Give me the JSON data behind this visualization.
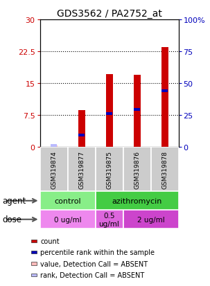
{
  "title": "GDS3562 / PA2752_at",
  "samples": [
    "GSM319874",
    "GSM319877",
    "GSM319875",
    "GSM319876",
    "GSM319878"
  ],
  "red_bar_heights": [
    0.3,
    8.7,
    17.2,
    17.0,
    23.5
  ],
  "blue_marker_values": [
    0.3,
    2.8,
    7.8,
    8.8,
    13.2
  ],
  "absent_samples": [
    0
  ],
  "red_bar_color": "#cc0000",
  "blue_marker_color": "#0000bb",
  "absent_red_color": "#ffbbbb",
  "absent_blue_color": "#bbbbff",
  "ylim_left": [
    0,
    30
  ],
  "ylim_right": [
    0,
    100
  ],
  "left_yticks": [
    0,
    7.5,
    15,
    22.5,
    30
  ],
  "right_yticks": [
    0,
    25,
    50,
    75,
    100
  ],
  "left_tick_labels": [
    "0",
    "7.5",
    "15",
    "22.5",
    "30"
  ],
  "right_tick_labels": [
    "0",
    "25",
    "50",
    "75",
    "100%"
  ],
  "left_tick_color": "#cc0000",
  "right_tick_color": "#0000bb",
  "agent_items": [
    {
      "label": "control",
      "span": [
        0,
        2
      ],
      "color": "#88ee88"
    },
    {
      "label": "azithromycin",
      "span": [
        2,
        5
      ],
      "color": "#44cc44"
    }
  ],
  "dose_items": [
    {
      "label": "0 ug/ml",
      "span": [
        0,
        2
      ],
      "color": "#ee88ee"
    },
    {
      "label": "0.5\nug/ml",
      "span": [
        2,
        3
      ],
      "color": "#dd66dd"
    },
    {
      "label": "2 ug/ml",
      "span": [
        3,
        5
      ],
      "color": "#cc44cc"
    }
  ],
  "bar_width": 0.25,
  "sample_bg_color": "#cccccc",
  "legend_items": [
    {
      "label": "count",
      "color": "#cc0000"
    },
    {
      "label": "percentile rank within the sample",
      "color": "#0000bb"
    },
    {
      "label": "value, Detection Call = ABSENT",
      "color": "#ffbbbb"
    },
    {
      "label": "rank, Detection Call = ABSENT",
      "color": "#bbbbff"
    }
  ]
}
